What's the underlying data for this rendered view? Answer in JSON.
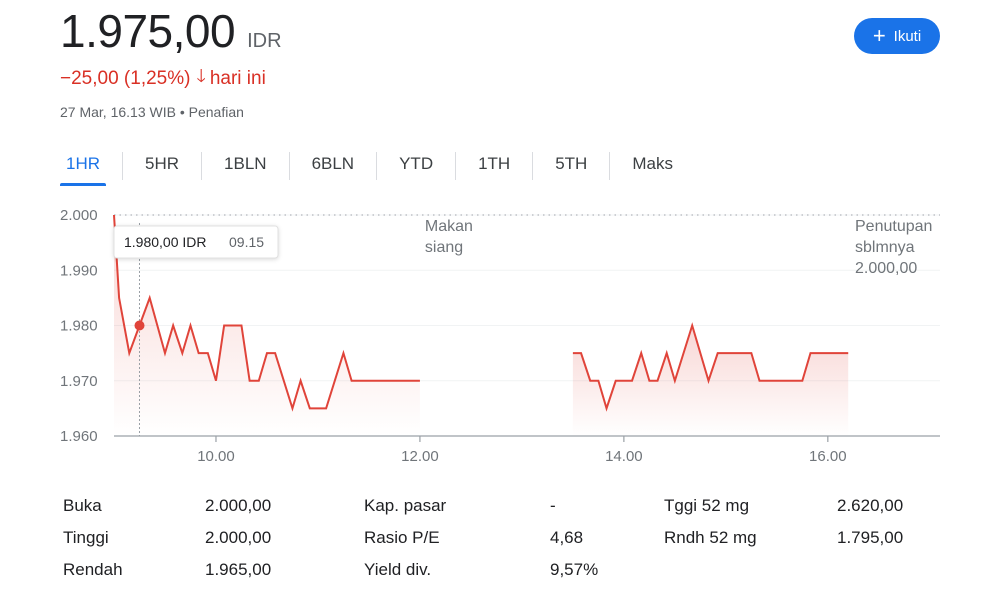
{
  "quote": {
    "price": "1.975,00",
    "currency": "IDR",
    "change": "−25,00 (1,25%)",
    "direction_icon": "arrow-down-icon",
    "change_period": "hari ini",
    "timestamp": "27 Mar, 16.13 WIB • Penafian"
  },
  "follow_button": {
    "icon": "plus-icon",
    "label": "Ikuti"
  },
  "tabs": [
    {
      "label": "1HR",
      "active": true
    },
    {
      "label": "5HR"
    },
    {
      "label": "1BLN"
    },
    {
      "label": "6BLN"
    },
    {
      "label": "YTD"
    },
    {
      "label": "1TH"
    },
    {
      "label": "5TH"
    },
    {
      "label": "Maks"
    }
  ],
  "colors": {
    "line": "#e0443a",
    "accent": "#1a73e8",
    "negative": "#d93025",
    "grid": "#dadce0",
    "axis_text": "#70757a"
  },
  "chart_data": {
    "type": "line",
    "x_unit": "hours",
    "xlim": [
      9.0,
      17.1
    ],
    "ylim": [
      1960,
      2000
    ],
    "xticks": [
      {
        "v": 10,
        "label": "10.00"
      },
      {
        "v": 12,
        "label": "12.00"
      },
      {
        "v": 14,
        "label": "14.00"
      },
      {
        "v": 16,
        "label": "16.00"
      }
    ],
    "yticks": [
      {
        "v": 2000,
        "label": "2.000"
      },
      {
        "v": 1990,
        "label": "1.990"
      },
      {
        "v": 1980,
        "label": "1.980"
      },
      {
        "v": 1970,
        "label": "1.970"
      },
      {
        "v": 1960,
        "label": "1.960"
      }
    ],
    "prev_close": 2000,
    "prev_close_label": [
      "Penutupan",
      "sblmnya",
      "2.000,00"
    ],
    "lunch_label": [
      "Makan",
      "siang"
    ],
    "lunch_label_x": 12.5,
    "tooltip": {
      "price": "1.980,00 IDR",
      "time": "09.15",
      "x": 9.25,
      "y": 1980
    },
    "series": [
      {
        "points": [
          [
            9.0,
            2000
          ],
          [
            9.05,
            1985
          ],
          [
            9.15,
            1975
          ],
          [
            9.25,
            1980
          ],
          [
            9.35,
            1985
          ],
          [
            9.5,
            1975
          ],
          [
            9.58,
            1980
          ],
          [
            9.67,
            1975
          ],
          [
            9.75,
            1980
          ],
          [
            9.83,
            1975
          ],
          [
            9.92,
            1975
          ],
          [
            10.0,
            1970
          ],
          [
            10.08,
            1980
          ],
          [
            10.25,
            1980
          ],
          [
            10.33,
            1970
          ],
          [
            10.42,
            1970
          ],
          [
            10.5,
            1975
          ],
          [
            10.58,
            1975
          ],
          [
            10.75,
            1965
          ],
          [
            10.83,
            1970
          ],
          [
            10.92,
            1965
          ],
          [
            11.08,
            1965
          ],
          [
            11.25,
            1975
          ],
          [
            11.33,
            1970
          ],
          [
            12.0,
            1970
          ]
        ]
      },
      {
        "points": [
          [
            13.5,
            1975
          ],
          [
            13.58,
            1975
          ],
          [
            13.67,
            1970
          ],
          [
            13.75,
            1970
          ],
          [
            13.83,
            1965
          ],
          [
            13.92,
            1970
          ],
          [
            14.08,
            1970
          ],
          [
            14.17,
            1975
          ],
          [
            14.25,
            1970
          ],
          [
            14.33,
            1970
          ],
          [
            14.42,
            1975
          ],
          [
            14.5,
            1970
          ],
          [
            14.67,
            1980
          ],
          [
            14.83,
            1970
          ],
          [
            14.92,
            1975
          ],
          [
            15.25,
            1975
          ],
          [
            15.33,
            1970
          ],
          [
            15.75,
            1970
          ],
          [
            15.83,
            1975
          ],
          [
            16.2,
            1975
          ]
        ]
      }
    ]
  },
  "stats": {
    "col1": [
      {
        "label": "Buka",
        "value": "2.000,00"
      },
      {
        "label": "Tinggi",
        "value": "2.000,00"
      },
      {
        "label": "Rendah",
        "value": "1.965,00"
      }
    ],
    "col2": [
      {
        "label": "Kap. pasar",
        "value": "-"
      },
      {
        "label": "Rasio P/E",
        "value": "4,68"
      },
      {
        "label": "Yield div.",
        "value": "9,57%"
      }
    ],
    "col3": [
      {
        "label": "Tggi 52 mg",
        "value": "2.620,00"
      },
      {
        "label": "Rndh 52 mg",
        "value": "1.795,00"
      }
    ]
  }
}
